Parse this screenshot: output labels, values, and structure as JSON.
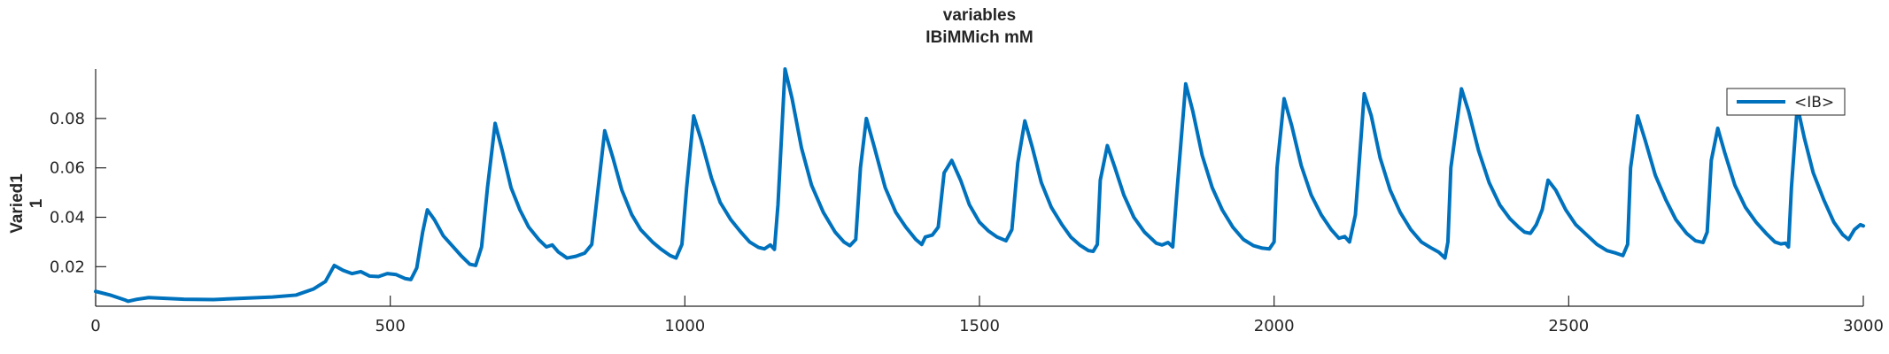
{
  "chart_data": {
    "type": "line",
    "title": "variables",
    "subtitle": "IBiMMich mM",
    "ylabel_lines": [
      "Varied1",
      "1"
    ],
    "xlabel": "",
    "xlim": [
      0,
      3000
    ],
    "ylim": [
      0.004,
      0.1
    ],
    "x_ticks": [
      0,
      500,
      1000,
      1500,
      2000,
      2500,
      3000
    ],
    "y_ticks": [
      0.02,
      0.04,
      0.06,
      0.08
    ],
    "y_tick_labels": [
      "0.02",
      "0.04",
      "0.06",
      "0.08"
    ],
    "grid": false,
    "legend": {
      "position": "top-right",
      "entries": [
        "<IB>"
      ]
    },
    "colors": {
      "series": "#0072BD",
      "axis": "#262626"
    },
    "series": [
      {
        "name": "<IB>",
        "points": [
          [
            0,
            0.01
          ],
          [
            25,
            0.0085
          ],
          [
            50,
            0.0065
          ],
          [
            55,
            0.006
          ],
          [
            70,
            0.0068
          ],
          [
            90,
            0.0075
          ],
          [
            150,
            0.0068
          ],
          [
            200,
            0.0067
          ],
          [
            260,
            0.0073
          ],
          [
            300,
            0.0077
          ],
          [
            340,
            0.0085
          ],
          [
            370,
            0.011
          ],
          [
            390,
            0.014
          ],
          [
            405,
            0.0205
          ],
          [
            420,
            0.0185
          ],
          [
            435,
            0.0172
          ],
          [
            450,
            0.018
          ],
          [
            465,
            0.0162
          ],
          [
            480,
            0.016
          ],
          [
            495,
            0.0172
          ],
          [
            510,
            0.0168
          ],
          [
            525,
            0.0152
          ],
          [
            535,
            0.0148
          ],
          [
            545,
            0.0195
          ],
          [
            555,
            0.034
          ],
          [
            563,
            0.043
          ],
          [
            575,
            0.039
          ],
          [
            590,
            0.0325
          ],
          [
            605,
            0.0285
          ],
          [
            620,
            0.0245
          ],
          [
            635,
            0.021
          ],
          [
            645,
            0.0205
          ],
          [
            655,
            0.028
          ],
          [
            665,
            0.052
          ],
          [
            678,
            0.078
          ],
          [
            690,
            0.067
          ],
          [
            705,
            0.052
          ],
          [
            720,
            0.043
          ],
          [
            735,
            0.036
          ],
          [
            752,
            0.031
          ],
          [
            765,
            0.028
          ],
          [
            775,
            0.0288
          ],
          [
            785,
            0.026
          ],
          [
            800,
            0.0235
          ],
          [
            815,
            0.0242
          ],
          [
            830,
            0.0255
          ],
          [
            842,
            0.029
          ],
          [
            852,
            0.05
          ],
          [
            864,
            0.075
          ],
          [
            878,
            0.064
          ],
          [
            893,
            0.051
          ],
          [
            910,
            0.041
          ],
          [
            925,
            0.035
          ],
          [
            945,
            0.03
          ],
          [
            960,
            0.027
          ],
          [
            975,
            0.0245
          ],
          [
            985,
            0.0235
          ],
          [
            995,
            0.029
          ],
          [
            1003,
            0.052
          ],
          [
            1015,
            0.081
          ],
          [
            1028,
            0.071
          ],
          [
            1045,
            0.056
          ],
          [
            1060,
            0.046
          ],
          [
            1078,
            0.039
          ],
          [
            1095,
            0.034
          ],
          [
            1110,
            0.03
          ],
          [
            1125,
            0.0278
          ],
          [
            1135,
            0.0272
          ],
          [
            1145,
            0.0288
          ],
          [
            1152,
            0.027
          ],
          [
            1158,
            0.045
          ],
          [
            1170,
            0.1
          ],
          [
            1182,
            0.088
          ],
          [
            1198,
            0.068
          ],
          [
            1215,
            0.053
          ],
          [
            1235,
            0.042
          ],
          [
            1255,
            0.034
          ],
          [
            1270,
            0.03
          ],
          [
            1280,
            0.0285
          ],
          [
            1290,
            0.031
          ],
          [
            1298,
            0.06
          ],
          [
            1308,
            0.08
          ],
          [
            1322,
            0.068
          ],
          [
            1340,
            0.052
          ],
          [
            1358,
            0.042
          ],
          [
            1375,
            0.036
          ],
          [
            1392,
            0.031
          ],
          [
            1402,
            0.029
          ],
          [
            1408,
            0.032
          ],
          [
            1420,
            0.0328
          ],
          [
            1430,
            0.036
          ],
          [
            1440,
            0.058
          ],
          [
            1453,
            0.063
          ],
          [
            1468,
            0.055
          ],
          [
            1483,
            0.045
          ],
          [
            1500,
            0.038
          ],
          [
            1515,
            0.0345
          ],
          [
            1530,
            0.032
          ],
          [
            1545,
            0.0305
          ],
          [
            1555,
            0.035
          ],
          [
            1565,
            0.062
          ],
          [
            1577,
            0.079
          ],
          [
            1590,
            0.068
          ],
          [
            1605,
            0.054
          ],
          [
            1622,
            0.044
          ],
          [
            1640,
            0.037
          ],
          [
            1655,
            0.032
          ],
          [
            1670,
            0.0288
          ],
          [
            1685,
            0.0265
          ],
          [
            1693,
            0.0262
          ],
          [
            1700,
            0.029
          ],
          [
            1705,
            0.055
          ],
          [
            1717,
            0.069
          ],
          [
            1730,
            0.06
          ],
          [
            1745,
            0.049
          ],
          [
            1762,
            0.04
          ],
          [
            1780,
            0.034
          ],
          [
            1800,
            0.0295
          ],
          [
            1810,
            0.0288
          ],
          [
            1820,
            0.0298
          ],
          [
            1828,
            0.028
          ],
          [
            1835,
            0.05
          ],
          [
            1850,
            0.094
          ],
          [
            1862,
            0.083
          ],
          [
            1878,
            0.065
          ],
          [
            1895,
            0.052
          ],
          [
            1912,
            0.043
          ],
          [
            1930,
            0.036
          ],
          [
            1948,
            0.031
          ],
          [
            1965,
            0.0285
          ],
          [
            1980,
            0.0275
          ],
          [
            1992,
            0.0272
          ],
          [
            2000,
            0.03
          ],
          [
            2005,
            0.06
          ],
          [
            2017,
            0.088
          ],
          [
            2030,
            0.077
          ],
          [
            2046,
            0.061
          ],
          [
            2063,
            0.049
          ],
          [
            2080,
            0.041
          ],
          [
            2097,
            0.035
          ],
          [
            2110,
            0.0315
          ],
          [
            2120,
            0.0322
          ],
          [
            2128,
            0.03
          ],
          [
            2138,
            0.041
          ],
          [
            2153,
            0.09
          ],
          [
            2165,
            0.081
          ],
          [
            2180,
            0.064
          ],
          [
            2197,
            0.051
          ],
          [
            2214,
            0.042
          ],
          [
            2232,
            0.035
          ],
          [
            2250,
            0.03
          ],
          [
            2265,
            0.0278
          ],
          [
            2280,
            0.0258
          ],
          [
            2290,
            0.0235
          ],
          [
            2295,
            0.03
          ],
          [
            2300,
            0.06
          ],
          [
            2318,
            0.092
          ],
          [
            2330,
            0.083
          ],
          [
            2347,
            0.067
          ],
          [
            2365,
            0.054
          ],
          [
            2383,
            0.045
          ],
          [
            2400,
            0.0395
          ],
          [
            2415,
            0.036
          ],
          [
            2425,
            0.034
          ],
          [
            2435,
            0.0335
          ],
          [
            2445,
            0.037
          ],
          [
            2455,
            0.043
          ],
          [
            2465,
            0.055
          ],
          [
            2478,
            0.051
          ],
          [
            2495,
            0.043
          ],
          [
            2512,
            0.037
          ],
          [
            2530,
            0.033
          ],
          [
            2548,
            0.029
          ],
          [
            2565,
            0.0265
          ],
          [
            2580,
            0.0255
          ],
          [
            2592,
            0.0245
          ],
          [
            2600,
            0.029
          ],
          [
            2605,
            0.06
          ],
          [
            2617,
            0.081
          ],
          [
            2630,
            0.071
          ],
          [
            2647,
            0.057
          ],
          [
            2665,
            0.047
          ],
          [
            2682,
            0.039
          ],
          [
            2700,
            0.0335
          ],
          [
            2715,
            0.0305
          ],
          [
            2728,
            0.0298
          ],
          [
            2735,
            0.034
          ],
          [
            2742,
            0.063
          ],
          [
            2753,
            0.076
          ],
          [
            2765,
            0.066
          ],
          [
            2782,
            0.053
          ],
          [
            2800,
            0.044
          ],
          [
            2818,
            0.038
          ],
          [
            2835,
            0.0335
          ],
          [
            2850,
            0.03
          ],
          [
            2860,
            0.0292
          ],
          [
            2868,
            0.0295
          ],
          [
            2873,
            0.028
          ],
          [
            2878,
            0.052
          ],
          [
            2888,
            0.085
          ],
          [
            2900,
            0.072
          ],
          [
            2915,
            0.058
          ],
          [
            2933,
            0.047
          ],
          [
            2950,
            0.038
          ],
          [
            2965,
            0.033
          ],
          [
            2975,
            0.031
          ],
          [
            2985,
            0.035
          ],
          [
            2995,
            0.037
          ],
          [
            3000,
            0.0365
          ]
        ]
      }
    ]
  }
}
